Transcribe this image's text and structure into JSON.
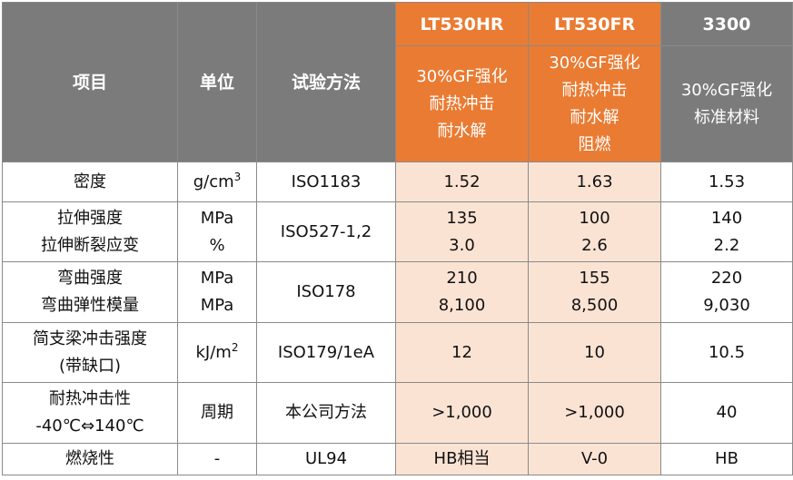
{
  "header": {
    "item": "项目",
    "unit": "单位",
    "method": "试验方法",
    "products": [
      {
        "name": "LT530HR",
        "desc": [
          "30%GF强化",
          "耐热冲击",
          "耐水解"
        ]
      },
      {
        "name": "LT530FR",
        "desc": [
          "30%GF强化",
          "耐热冲击",
          "耐水解",
          "阻燃"
        ]
      },
      {
        "name": "3300",
        "desc": [
          "30%GF强化",
          "标准材料"
        ]
      }
    ]
  },
  "rows": [
    {
      "item": [
        "密度"
      ],
      "unit": {
        "base": "g/cm",
        "sup": "3"
      },
      "method": "ISO1183",
      "values": [
        [
          "1.52"
        ],
        [
          "1.63"
        ],
        [
          "1.53"
        ]
      ]
    },
    {
      "item": [
        "拉伸强度",
        "拉伸断裂应变"
      ],
      "unit": [
        "MPa",
        "%"
      ],
      "method": "ISO527-1,2",
      "values": [
        [
          "135",
          "3.0"
        ],
        [
          "100",
          "2.6"
        ],
        [
          "140",
          "2.2"
        ]
      ]
    },
    {
      "item": [
        "弯曲强度",
        "弯曲弹性模量"
      ],
      "unit": [
        "MPa",
        "MPa"
      ],
      "method": "ISO178",
      "values": [
        [
          "210",
          "8,100"
        ],
        [
          "155",
          "8,500"
        ],
        [
          "220",
          "9,030"
        ]
      ]
    },
    {
      "item": [
        "简支梁冲击强度",
        "(带缺口)"
      ],
      "unit": {
        "base": "kJ/m",
        "sup": "2"
      },
      "method": "ISO179/1eA",
      "values": [
        [
          "12"
        ],
        [
          "10"
        ],
        [
          "10.5"
        ]
      ]
    },
    {
      "item": [
        "耐热冲击性",
        "-40℃⇔140℃"
      ],
      "unit": [
        "周期"
      ],
      "method": "本公司方法",
      "values": [
        [
          ">1,000"
        ],
        [
          ">1,000"
        ],
        [
          "40"
        ]
      ]
    },
    {
      "item": [
        "燃烧性"
      ],
      "unit": [
        "-"
      ],
      "method": "UL94",
      "values": [
        [
          "HB相当"
        ],
        [
          "V-0"
        ],
        [
          "HB"
        ]
      ]
    }
  ]
}
